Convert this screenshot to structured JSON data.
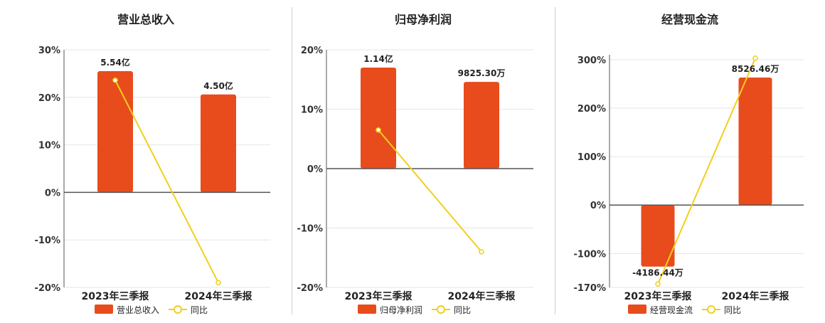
{
  "colors": {
    "bar": "#e84c1c",
    "line": "#f2cf1d",
    "grid": "#e6e6e6",
    "axis": "#555555"
  },
  "chart_data": [
    {
      "type": "bar",
      "title": "营业总收入",
      "categories": [
        "2023年三季报",
        "2024年三季报"
      ],
      "y_ticks": [
        30,
        20,
        10,
        0,
        -10,
        -20
      ],
      "y_tick_labels": [
        "30%",
        "20%",
        "10%",
        "0%",
        "-10%",
        "-20%"
      ],
      "ylim": [
        -20,
        30
      ],
      "series": [
        {
          "name": "营业总收入",
          "kind": "bar",
          "values": [
            25.5,
            20.6
          ],
          "labels": [
            "5.54亿",
            "4.50亿"
          ]
        },
        {
          "name": "同比",
          "kind": "line",
          "values": [
            23.6,
            -19.0
          ]
        }
      ],
      "legend": [
        "营业总收入",
        "同比"
      ],
      "legend_position": "bottom"
    },
    {
      "type": "bar",
      "title": "归母净利润",
      "categories": [
        "2023年三季报",
        "2024年三季报"
      ],
      "y_ticks": [
        20,
        10,
        0,
        -10,
        -20
      ],
      "y_tick_labels": [
        "20%",
        "10%",
        "0%",
        "-10%",
        "-20%"
      ],
      "ylim": [
        -20,
        20
      ],
      "series": [
        {
          "name": "归母净利润",
          "kind": "bar",
          "values": [
            17.0,
            14.6
          ],
          "labels": [
            "1.14亿",
            "9825.30万"
          ]
        },
        {
          "name": "同比",
          "kind": "line",
          "values": [
            6.5,
            -14.0
          ]
        }
      ],
      "legend": [
        "归母净利润",
        "同比"
      ],
      "legend_position": "bottom"
    },
    {
      "type": "bar",
      "title": "经营现金流",
      "categories": [
        "2023年三季报",
        "2024年三季报"
      ],
      "y_ticks": [
        300,
        200,
        100,
        0,
        -100,
        -170
      ],
      "y_tick_labels": [
        "300%",
        "200%",
        "100%",
        "0%",
        "-100%",
        "-170%"
      ],
      "ylim": [
        -170,
        310
      ],
      "series": [
        {
          "name": "经营现金流",
          "kind": "bar",
          "values": [
            -127,
            263
          ],
          "labels": [
            "-4186.44万",
            "8526.46万"
          ]
        },
        {
          "name": "同比",
          "kind": "line",
          "values": [
            -163,
            303
          ]
        }
      ],
      "legend": [
        "经营现金流",
        "同比"
      ],
      "legend_position": "bottom"
    }
  ]
}
